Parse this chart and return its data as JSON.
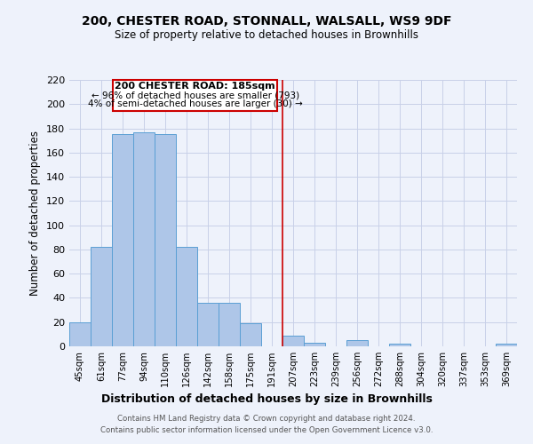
{
  "title": "200, CHESTER ROAD, STONNALL, WALSALL, WS9 9DF",
  "subtitle": "Size of property relative to detached houses in Brownhills",
  "xlabel": "Distribution of detached houses by size in Brownhills",
  "ylabel": "Number of detached properties",
  "bar_labels": [
    "45sqm",
    "61sqm",
    "77sqm",
    "94sqm",
    "110sqm",
    "126sqm",
    "142sqm",
    "158sqm",
    "175sqm",
    "191sqm",
    "207sqm",
    "223sqm",
    "239sqm",
    "256sqm",
    "272sqm",
    "288sqm",
    "304sqm",
    "320sqm",
    "337sqm",
    "353sqm",
    "369sqm"
  ],
  "bar_heights": [
    20,
    82,
    175,
    177,
    175,
    82,
    36,
    36,
    19,
    0,
    9,
    3,
    0,
    5,
    0,
    2,
    0,
    0,
    0,
    0,
    2
  ],
  "bar_color": "#aec6e8",
  "bar_edge_color": "#5a9fd4",
  "ylim": [
    0,
    220
  ],
  "yticks": [
    0,
    20,
    40,
    60,
    80,
    100,
    120,
    140,
    160,
    180,
    200,
    220
  ],
  "vline_x": 9.5,
  "vline_color": "#cc0000",
  "annotation_title": "200 CHESTER ROAD: 185sqm",
  "annotation_line1": "← 96% of detached houses are smaller (793)",
  "annotation_line2": "4% of semi-detached houses are larger (30) →",
  "annotation_box_color": "#cc0000",
  "footer_line1": "Contains HM Land Registry data © Crown copyright and database right 2024.",
  "footer_line2": "Contains public sector information licensed under the Open Government Licence v3.0.",
  "background_color": "#eef2fb",
  "grid_color": "#c8d0e8"
}
